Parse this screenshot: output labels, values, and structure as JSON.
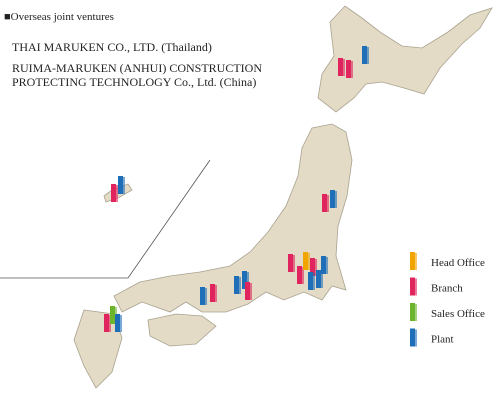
{
  "overseas": {
    "heading": "■Overseas joint ventures",
    "entries": [
      "THAI MARUKEN CO., LTD. (Thailand)",
      "RUIMA-MARUKEN (ANHUI) CONSTRUCTION",
      "PROTECTING TECHNOLOGY Co., Ltd. (China)"
    ]
  },
  "legend": [
    {
      "label": "Head Office",
      "color": "#f2a500"
    },
    {
      "label": "Branch",
      "color": "#e0245e"
    },
    {
      "label": "Sales Office",
      "color": "#6cb52d"
    },
    {
      "label": "Plant",
      "color": "#1f6fb8"
    }
  ]
}
